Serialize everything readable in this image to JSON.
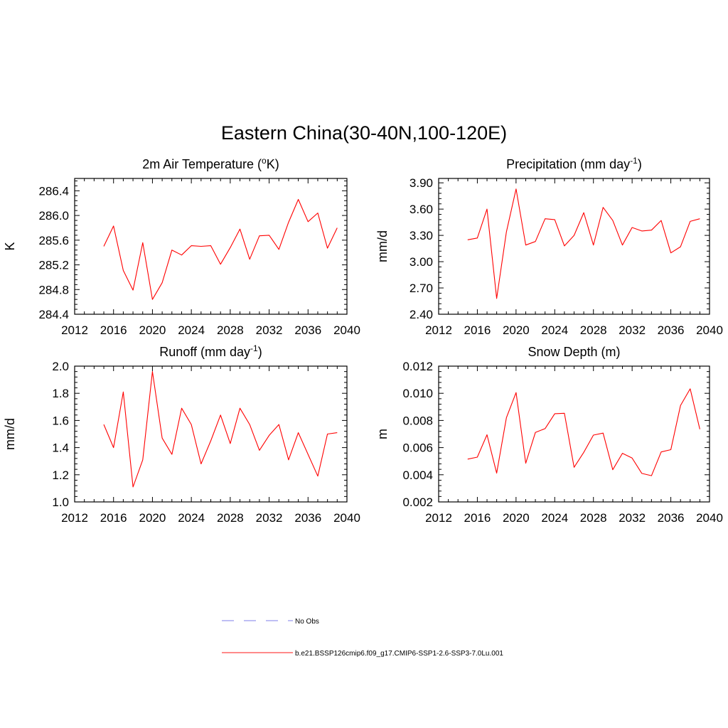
{
  "figure": {
    "title": "Eastern China(30-40N,100-120E)"
  },
  "legend": {
    "placement": "bottom-center",
    "entries": [
      {
        "label": "No Obs",
        "color": "#9999ee",
        "dash": true
      },
      {
        "label": "b.e21.BSSP126cmip6.f09_g17.CMIP6-SSP1-2.6-SSP3-7.0Lu.001",
        "color": "#ff4444",
        "dash": false
      }
    ]
  },
  "chart_data": [
    {
      "type": "line",
      "title_main": "2m Air Temperature (",
      "title_sup": "o",
      "title_end": "K)",
      "ylabel": "K",
      "xlim": [
        2012,
        2040
      ],
      "xticks": [
        2012,
        2016,
        2020,
        2024,
        2028,
        2032,
        2036,
        2040
      ],
      "ylim": [
        284.4,
        286.6
      ],
      "yticks": [
        284.4,
        284.8,
        285.2,
        285.6,
        286.0,
        286.4
      ],
      "ytick_labels": [
        "284.4",
        "284.8",
        "285.2",
        "285.6",
        "286.0",
        "286.4"
      ],
      "x": [
        2015,
        2016,
        2017,
        2018,
        2019,
        2020,
        2021,
        2022,
        2023,
        2024,
        2025,
        2026,
        2027,
        2028,
        2029,
        2030,
        2031,
        2032,
        2033,
        2034,
        2035,
        2036,
        2037,
        2038,
        2039
      ],
      "series": [
        {
          "color": "#ff0000",
          "values": [
            285.5,
            285.83,
            285.11,
            284.79,
            285.56,
            284.64,
            284.91,
            285.44,
            285.36,
            285.51,
            285.5,
            285.51,
            285.21,
            285.48,
            285.78,
            285.29,
            285.67,
            285.68,
            285.45,
            285.89,
            286.26,
            285.9,
            286.04,
            285.47,
            285.8
          ]
        }
      ]
    },
    {
      "type": "line",
      "title_main": "Precipitation (mm day",
      "title_sup": "-1",
      "title_end": ")",
      "ylabel": "mm/d",
      "xlim": [
        2012,
        2040
      ],
      "xticks": [
        2012,
        2016,
        2020,
        2024,
        2028,
        2032,
        2036,
        2040
      ],
      "ylim": [
        2.4,
        3.95
      ],
      "yticks": [
        2.4,
        2.7,
        3.0,
        3.3,
        3.6,
        3.9
      ],
      "ytick_labels": [
        "2.40",
        "2.70",
        "3.00",
        "3.30",
        "3.60",
        "3.90"
      ],
      "x": [
        2015,
        2016,
        2017,
        2018,
        2019,
        2020,
        2021,
        2022,
        2023,
        2024,
        2025,
        2026,
        2027,
        2028,
        2029,
        2030,
        2031,
        2032,
        2033,
        2034,
        2035,
        2036,
        2037,
        2038,
        2039
      ],
      "series": [
        {
          "color": "#ff0000",
          "values": [
            3.25,
            3.27,
            3.6,
            2.58,
            3.34,
            3.83,
            3.19,
            3.23,
            3.49,
            3.48,
            3.18,
            3.3,
            3.56,
            3.19,
            3.62,
            3.47,
            3.19,
            3.39,
            3.35,
            3.36,
            3.47,
            3.1,
            3.17,
            3.46,
            3.49
          ]
        }
      ]
    },
    {
      "type": "line",
      "title_main": "Runoff (mm day",
      "title_sup": "-1",
      "title_end": ")",
      "ylabel": "mm/d",
      "xlim": [
        2012,
        2040
      ],
      "xticks": [
        2012,
        2016,
        2020,
        2024,
        2028,
        2032,
        2036,
        2040
      ],
      "ylim": [
        1.0,
        2.0
      ],
      "yticks": [
        1.0,
        1.2,
        1.4,
        1.6,
        1.8,
        2.0
      ],
      "ytick_labels": [
        "1.0",
        "1.2",
        "1.4",
        "1.6",
        "1.8",
        "2.0"
      ],
      "x": [
        2015,
        2016,
        2017,
        2018,
        2019,
        2020,
        2021,
        2022,
        2023,
        2024,
        2025,
        2026,
        2027,
        2028,
        2029,
        2030,
        2031,
        2032,
        2033,
        2034,
        2035,
        2036,
        2037,
        2038,
        2039
      ],
      "series": [
        {
          "color": "#ff0000",
          "values": [
            1.57,
            1.4,
            1.81,
            1.11,
            1.31,
            1.96,
            1.47,
            1.35,
            1.69,
            1.57,
            1.28,
            1.45,
            1.64,
            1.43,
            1.69,
            1.57,
            1.38,
            1.49,
            1.57,
            1.31,
            1.51,
            1.35,
            1.19,
            1.5,
            1.51
          ]
        }
      ]
    },
    {
      "type": "line",
      "title_main": "Snow Depth (m)",
      "title_sup": "",
      "title_end": "",
      "ylabel": "m",
      "xlim": [
        2012,
        2040
      ],
      "xticks": [
        2012,
        2016,
        2020,
        2024,
        2028,
        2032,
        2036,
        2040
      ],
      "ylim": [
        0.002,
        0.012
      ],
      "yticks": [
        0.002,
        0.004,
        0.006,
        0.008,
        0.01,
        0.012
      ],
      "ytick_labels": [
        "0.002",
        "0.004",
        "0.006",
        "0.008",
        "0.010",
        "0.012"
      ],
      "x": [
        2015,
        2016,
        2017,
        2018,
        2019,
        2020,
        2021,
        2022,
        2023,
        2024,
        2025,
        2026,
        2027,
        2028,
        2029,
        2030,
        2031,
        2032,
        2033,
        2034,
        2035,
        2036,
        2037,
        2038,
        2039
      ],
      "series": [
        {
          "color": "#ff0000",
          "values": [
            0.00515,
            0.0053,
            0.00695,
            0.00412,
            0.0082,
            0.01005,
            0.00485,
            0.00712,
            0.0074,
            0.0085,
            0.00853,
            0.00455,
            0.00565,
            0.00692,
            0.00707,
            0.00437,
            0.00558,
            0.00523,
            0.0041,
            0.00393,
            0.00568,
            0.00585,
            0.0091,
            0.01033,
            0.00735
          ]
        }
      ]
    }
  ]
}
